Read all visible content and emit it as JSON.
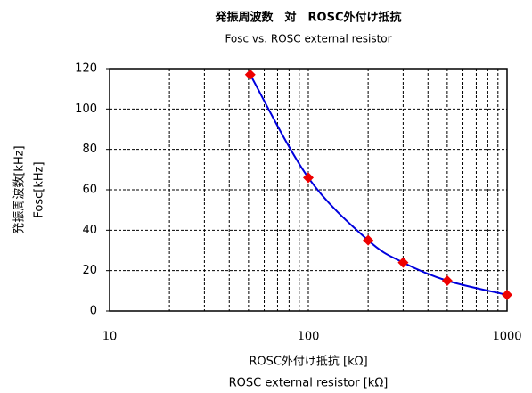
{
  "chart_data": {
    "type": "line",
    "title": "発振周波数　対　ROSC外付け抵抗",
    "subtitle": "Fosc vs. ROSC  external resistor",
    "x_label": [
      "ROSC外付け抵抗 [kΩ]",
      "ROSC external resistor [kΩ]"
    ],
    "y_label": [
      "発振周波数[kHz]",
      "Fosc[kHz]"
    ],
    "x": [
      51,
      100,
      200,
      300,
      500,
      1000
    ],
    "series": [
      {
        "name": "Fosc",
        "color": "#0000dd",
        "marker_color": "#ee0000",
        "values": [
          117,
          66,
          35,
          24,
          15,
          8
        ]
      }
    ],
    "xlim": [
      10,
      1000
    ],
    "xticks": [
      10,
      100,
      1000
    ],
    "x_log": true,
    "xminorticks": [
      20,
      30,
      40,
      50,
      60,
      70,
      80,
      90,
      200,
      300,
      400,
      500,
      600,
      700,
      800,
      900
    ],
    "ylim": [
      0,
      120
    ],
    "yticks": [
      0,
      20,
      40,
      60,
      80,
      100,
      120
    ],
    "grid": true
  }
}
